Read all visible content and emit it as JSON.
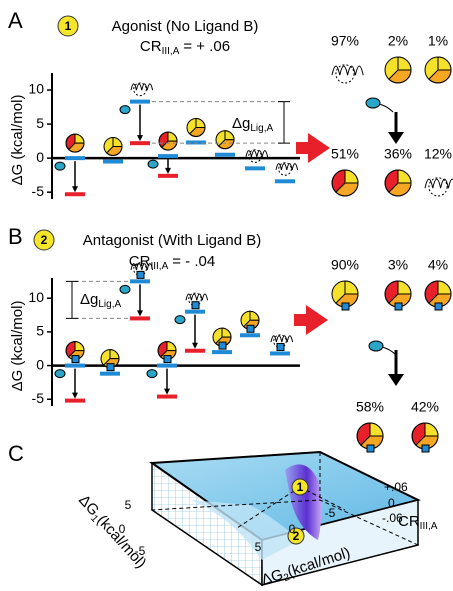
{
  "panel_a": {
    "label": "A",
    "badge": "1",
    "title": "Agonist (No Ligand B)",
    "cr": "CR",
    "cr_sub": "III,A",
    "cr_value": "= + .06",
    "axis_title": "ΔG (kcal/mol)",
    "ylim": [
      -6,
      12.5
    ],
    "yticks": [
      10,
      5,
      0,
      -5
    ],
    "levels": [
      {
        "blue": 0,
        "red": -5.3
      },
      {
        "blue": -0.5,
        "red": null
      },
      {
        "blue": 8.3,
        "red": 2.2
      },
      {
        "blue": 0.3,
        "red": -2.6
      },
      {
        "blue": 2.3,
        "red": null
      },
      {
        "blue": 0.5,
        "red": null
      },
      {
        "blue": -1.5,
        "red": null
      },
      {
        "blue": -3.4,
        "red": null
      }
    ],
    "gap": "Δg",
    "gap_sub": "Lig,A",
    "top_pcts": [
      "97%",
      "2%",
      "1%"
    ],
    "bottom_pcts": [
      "51%",
      "36%",
      "12%"
    ]
  },
  "panel_b": {
    "label": "B",
    "badge": "2",
    "title": "Antagonist (With Ligand B)",
    "cr": "CR",
    "cr_sub": "III,A",
    "cr_value": "= - .04",
    "axis_title": "ΔG (kcal/mol)",
    "ylim": [
      -6,
      13
    ],
    "yticks": [
      10,
      5,
      0,
      -5
    ],
    "levels": [
      {
        "blue": 0,
        "red": -5.2
      },
      {
        "blue": -1.2,
        "red": null
      },
      {
        "blue": 12.5,
        "red": 7
      },
      {
        "blue": 0,
        "red": -4.6
      },
      {
        "blue": 8,
        "red": 2.2
      },
      {
        "blue": 2,
        "red": null
      },
      {
        "blue": 4.5,
        "red": null
      },
      {
        "blue": 1.8,
        "red": null
      }
    ],
    "gap": "Δg",
    "gap_sub": "Lig,A",
    "top_pcts": [
      "90%",
      "3%",
      "4%"
    ],
    "bottom_pcts": [
      "58%",
      "42%"
    ]
  },
  "panel_c": {
    "label": "C",
    "marker_1": "1",
    "marker_2": "2",
    "x1_label": "ΔG",
    "x1_sub": "1",
    "x1_unit": "(kcal/mol)",
    "x2_label": "ΔG",
    "x2_sub": "2",
    "x2_unit": "(kcal/mol)",
    "z_label": "CR",
    "z_sub": "III,A",
    "z_ticks": [
      "+.06",
      "0",
      "-.06"
    ],
    "x1_ticks": [
      "5",
      "0",
      "-5"
    ],
    "x2_ticks": [
      "5",
      "0",
      "-5"
    ]
  }
}
